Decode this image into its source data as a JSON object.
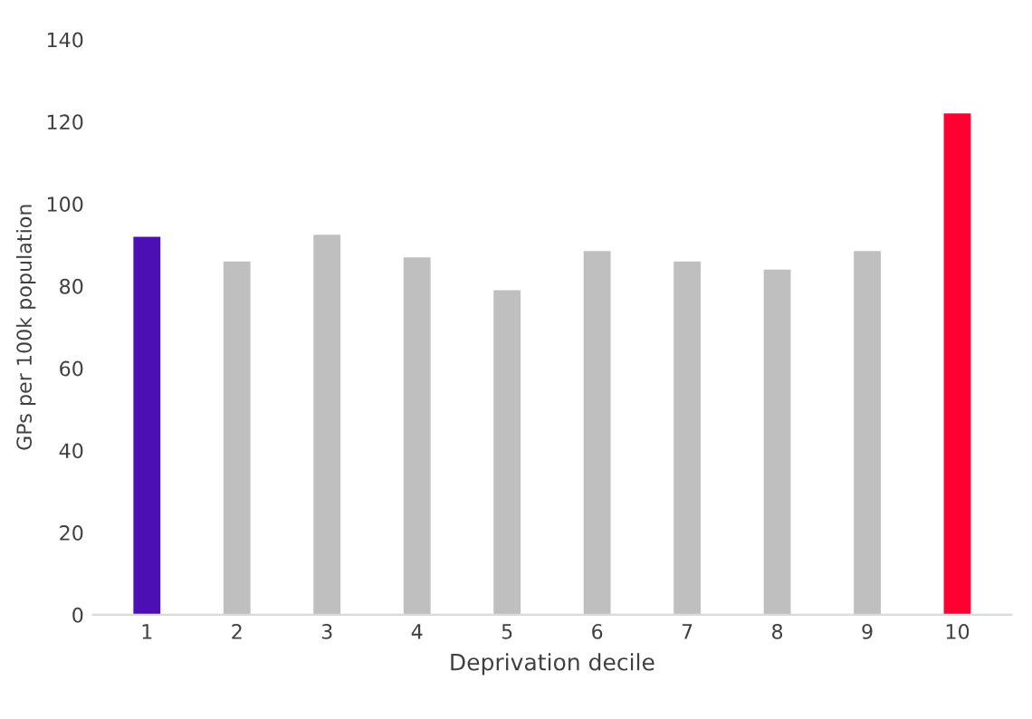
{
  "chart_data": {
    "type": "bar",
    "xlabel": "Deprivation decile",
    "ylabel": "GPs per 100k population",
    "categories": [
      "1",
      "2",
      "3",
      "4",
      "5",
      "6",
      "7",
      "8",
      "9",
      "10"
    ],
    "values": [
      92,
      86,
      92.5,
      87,
      79,
      88.5,
      86,
      84,
      88.5,
      122
    ],
    "colors": [
      "#4b0fb4",
      "#bfbfbf",
      "#bfbfbf",
      "#bfbfbf",
      "#bfbfbf",
      "#bfbfbf",
      "#bfbfbf",
      "#bfbfbf",
      "#bfbfbf",
      "#ff0033"
    ],
    "ylim": [
      0,
      140
    ],
    "yticks": [
      0,
      20,
      40,
      60,
      80,
      100,
      120,
      140
    ],
    "grid": false
  }
}
